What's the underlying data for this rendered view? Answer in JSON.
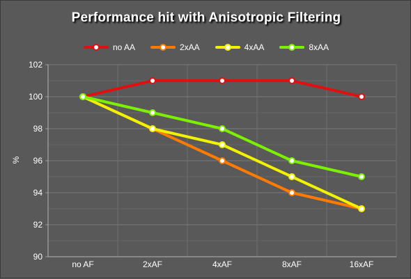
{
  "chart_data": {
    "type": "line",
    "title": "Performance hit with Anisotropic Filtering",
    "xlabel": "",
    "ylabel": "%",
    "categories": [
      "no AF",
      "2xAF",
      "4xAF",
      "8xAF",
      "16xAF"
    ],
    "ylim": [
      90,
      102
    ],
    "yticks": [
      "90",
      "92",
      "94",
      "96",
      "98",
      "100",
      "102"
    ],
    "grid": true,
    "legend_position": "top-center",
    "series": [
      {
        "name": "no AA",
        "color": "#e01010",
        "values": [
          100,
          101,
          101,
          101,
          100
        ]
      },
      {
        "name": "2xAA",
        "color": "#ff7b00",
        "values": [
          100,
          98,
          96,
          94,
          93
        ]
      },
      {
        "name": "4xAA",
        "color": "#f2f200",
        "values": [
          100,
          98,
          97,
          95,
          93
        ]
      },
      {
        "name": "8xAA",
        "color": "#7df000",
        "values": [
          100,
          99,
          98,
          96,
          95
        ]
      }
    ]
  }
}
